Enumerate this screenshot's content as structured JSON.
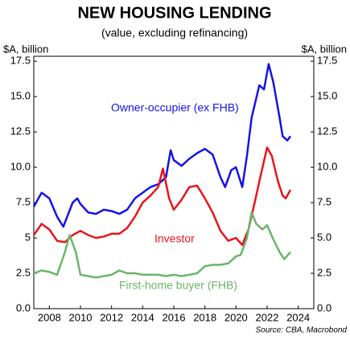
{
  "chart_data": {
    "type": "line",
    "title": "NEW HOUSING LENDING",
    "subtitle": "(value, excluding refinancing)",
    "y_label": "$A, billion",
    "y2_label": "$A, billion",
    "source": "Source: CBA, Macrobond",
    "xlim": [
      2007,
      2025
    ],
    "xticks": [
      2008,
      2010,
      2012,
      2014,
      2016,
      2018,
      2020,
      2022,
      2024
    ],
    "ylim": [
      0,
      17.85
    ],
    "yticks": [
      {
        "value": 0,
        "label": "0.0"
      },
      2.5,
      5,
      7.5,
      {
        "value": 10,
        "label": "10.0"
      },
      12.5,
      {
        "value": 15,
        "label": "15.0"
      },
      17.5
    ],
    "y2lim": [
      0,
      17.85
    ],
    "y2ticks": [
      {
        "value": 0,
        "label": "0.0"
      },
      2.5,
      {
        "value": 5,
        "label": "5.0"
      },
      7.5,
      {
        "value": 10,
        "label": "10.0"
      },
      12.5,
      {
        "value": 15,
        "label": "15.0"
      },
      17.5
    ],
    "grid": false,
    "series": [
      {
        "name": "Owner-occupier (ex FHB)",
        "color": "#1414e6",
        "x": [
          2007,
          2007.5,
          2008,
          2008.5,
          2008.9,
          2009.5,
          2009.8,
          2010,
          2010.5,
          2011,
          2011.5,
          2012,
          2012.5,
          2013,
          2013.5,
          2014,
          2014.5,
          2015,
          2015.5,
          2015.8,
          2016,
          2016.5,
          2017,
          2017.5,
          2018,
          2018.5,
          2019,
          2019.3,
          2019.7,
          2020,
          2020.4,
          2020.7,
          2021,
          2021.5,
          2021.8,
          2022.1,
          2022.4,
          2022.8,
          2023,
          2023.3,
          2023.5
        ],
        "values": [
          7.2,
          8.2,
          7.8,
          6.5,
          5.8,
          7.5,
          7.8,
          7.4,
          6.8,
          6.7,
          7.0,
          6.9,
          6.7,
          7.0,
          7.8,
          8.2,
          8.6,
          8.8,
          9.3,
          11.2,
          10.5,
          10.1,
          10.6,
          11.0,
          11.3,
          10.9,
          9.3,
          8.6,
          9.8,
          10.0,
          8.6,
          10.8,
          13.5,
          15.8,
          15.5,
          17.3,
          16.0,
          13.5,
          12.2,
          11.9,
          12.2
        ]
      },
      {
        "name": "Investor",
        "color": "#e8141c",
        "x": [
          2007,
          2007.5,
          2008,
          2008.5,
          2009,
          2009.5,
          2010,
          2010.5,
          2011,
          2011.5,
          2012,
          2012.5,
          2013,
          2013.5,
          2014,
          2014.5,
          2015,
          2015.3,
          2015.7,
          2016,
          2016.5,
          2017,
          2017.5,
          2018,
          2018.5,
          2019,
          2019.5,
          2020,
          2020.4,
          2020.8,
          2021.2,
          2021.6,
          2022,
          2022.3,
          2022.7,
          2023,
          2023.2,
          2023.5
        ],
        "values": [
          5.2,
          6.0,
          5.6,
          4.8,
          4.7,
          5.2,
          5.5,
          5.2,
          5.0,
          5.1,
          5.3,
          5.3,
          5.7,
          6.5,
          7.5,
          8.0,
          8.6,
          9.9,
          7.8,
          7.0,
          7.7,
          8.6,
          8.7,
          7.8,
          6.8,
          5.5,
          4.8,
          5.0,
          4.5,
          5.6,
          7.5,
          9.5,
          11.4,
          10.8,
          9.0,
          8.0,
          7.8,
          8.4
        ]
      },
      {
        "name": "First-home buyer (FHB)",
        "color": "#6ab46a",
        "x": [
          2007,
          2007.5,
          2008,
          2008.5,
          2009,
          2009.3,
          2009.7,
          2010,
          2010.5,
          2011,
          2011.5,
          2012,
          2012.5,
          2013,
          2013.5,
          2014,
          2014.5,
          2015,
          2015.5,
          2016,
          2016.5,
          2017,
          2017.5,
          2018,
          2018.5,
          2019,
          2019.5,
          2020,
          2020.3,
          2020.7,
          2021,
          2021.3,
          2021.7,
          2022,
          2022.4,
          2022.8,
          2023.1,
          2023.5
        ],
        "values": [
          2.5,
          2.7,
          2.6,
          2.4,
          4.0,
          5.2,
          4.0,
          2.4,
          2.3,
          2.2,
          2.3,
          2.4,
          2.7,
          2.5,
          2.5,
          2.4,
          2.4,
          2.4,
          2.3,
          2.4,
          2.3,
          2.4,
          2.5,
          3.0,
          3.1,
          3.1,
          3.2,
          3.7,
          3.8,
          5.0,
          6.8,
          6.0,
          5.6,
          5.9,
          4.9,
          4.0,
          3.5,
          4.0
        ]
      }
    ]
  }
}
